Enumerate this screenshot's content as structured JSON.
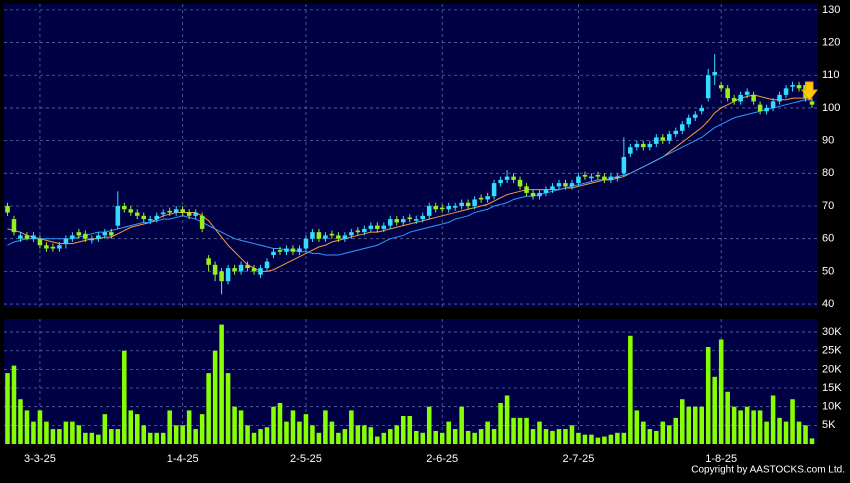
{
  "chart_data": {
    "type": "candlestick",
    "categories": [
      null,
      null,
      null,
      null,
      null,
      "3-3-25",
      null,
      null,
      null,
      null,
      null,
      null,
      null,
      null,
      null,
      null,
      null,
      null,
      null,
      null,
      null,
      null,
      null,
      null,
      null,
      null,
      null,
      "1-4-25",
      null,
      null,
      null,
      null,
      null,
      null,
      null,
      null,
      null,
      null,
      null,
      null,
      null,
      null,
      null,
      null,
      null,
      null,
      "2-5-25",
      null,
      null,
      null,
      null,
      null,
      null,
      null,
      null,
      null,
      null,
      null,
      null,
      null,
      null,
      null,
      null,
      null,
      null,
      null,
      null,
      "2-6-25",
      null,
      null,
      null,
      null,
      null,
      null,
      null,
      null,
      null,
      null,
      null,
      null,
      null,
      null,
      null,
      null,
      null,
      null,
      null,
      null,
      "2-7-25",
      null,
      null,
      null,
      null,
      null,
      null,
      null,
      null,
      null,
      null,
      null,
      null,
      null,
      null,
      null,
      null,
      null,
      null,
      null,
      null,
      null,
      "1-8-25",
      null,
      null,
      null,
      null,
      null,
      null,
      null,
      null,
      null,
      null,
      null,
      null,
      null,
      null
    ],
    "open": [
      70,
      66,
      60,
      61,
      60,
      60,
      58,
      57.5,
      57,
      58.5,
      60,
      62,
      61.5,
      59.5,
      60,
      61,
      62,
      64,
      70,
      69,
      68,
      67,
      65.5,
      66,
      67.5,
      68.5,
      68,
      69,
      68,
      67,
      67,
      54,
      52,
      50,
      47,
      51,
      50,
      52,
      51,
      49,
      51,
      55,
      56.5,
      56,
      57,
      56,
      57,
      60,
      62,
      60,
      61.5,
      61,
      60,
      61,
      62.5,
      62,
      63,
      64,
      63,
      64,
      66,
      65,
      66.5,
      65.5,
      66,
      67,
      70,
      69.5,
      69,
      69.5,
      70,
      71,
      70,
      72.5,
      72,
      73,
      77,
      78,
      79,
      78,
      76,
      74,
      73,
      74,
      75,
      76,
      77,
      76,
      77,
      79.5,
      78.5,
      79.5,
      79,
      78,
      78.5,
      80,
      86,
      88,
      89,
      88,
      89,
      91,
      90,
      92,
      93,
      95,
      97,
      99,
      103,
      110,
      107,
      106,
      103,
      102,
      104,
      104,
      101,
      99,
      100,
      102,
      104,
      106.5,
      107,
      107,
      102
    ],
    "high": [
      71,
      67,
      62,
      62,
      62,
      61,
      59,
      58.5,
      59,
      61,
      62,
      63,
      62.5,
      61,
      62,
      63,
      63,
      74.5,
      71,
      70,
      69,
      68,
      67,
      68,
      69,
      69.5,
      70,
      70,
      69,
      69,
      68,
      55,
      53,
      51,
      52,
      52,
      53,
      53,
      52,
      52,
      54,
      57,
      57.5,
      58,
      58,
      58,
      61,
      63,
      63,
      62,
      62.5,
      62,
      62,
      63,
      63.5,
      64,
      65,
      65,
      65,
      67,
      67,
      67,
      67.5,
      67,
      68,
      71,
      71,
      70.5,
      71,
      71,
      72,
      72,
      73,
      73.5,
      74,
      78,
      79,
      81,
      80,
      79,
      77,
      75,
      75,
      76,
      77,
      78,
      78,
      78,
      80,
      80.5,
      80,
      80.5,
      80,
      80,
      80,
      91,
      89,
      90,
      90,
      90,
      92,
      92,
      93,
      94,
      96,
      98,
      99,
      101,
      112,
      116.5,
      108,
      107,
      104,
      105,
      106,
      105,
      102,
      101,
      103,
      105,
      107,
      108,
      108,
      108,
      103
    ],
    "low": [
      67,
      61,
      59,
      59.5,
      59,
      57,
      56,
      56,
      56,
      57,
      59,
      60,
      59,
      58.5,
      59,
      60,
      60,
      63,
      68,
      67,
      66,
      65,
      64.5,
      65,
      66.5,
      67,
      67,
      67,
      66,
      66,
      62,
      50,
      47,
      43,
      46,
      49,
      49,
      50,
      49,
      48,
      50,
      54,
      55,
      55,
      55,
      55,
      56,
      59,
      59,
      59,
      60,
      59,
      59,
      60,
      61,
      61,
      62,
      62,
      62,
      63,
      64,
      64,
      65,
      64.5,
      65,
      66,
      68,
      68,
      68,
      68.5,
      69,
      69,
      69,
      71,
      71,
      72,
      76,
      77,
      77,
      75,
      73,
      72,
      72,
      73,
      74,
      75,
      75,
      75,
      76,
      78,
      77.5,
      78,
      77,
      77,
      77.5,
      79,
      85,
      87,
      87,
      87,
      88,
      89,
      89,
      91,
      92,
      94,
      96,
      98,
      102,
      107,
      105,
      102,
      101,
      101,
      103,
      101,
      98,
      98,
      99,
      101,
      103,
      105,
      105,
      102,
      100
    ],
    "close": [
      68,
      62,
      61,
      60,
      61,
      58,
      57,
      57,
      58,
      60,
      61,
      61,
      60,
      60,
      61,
      62,
      61,
      70,
      69,
      68,
      67,
      66,
      66,
      67,
      68,
      68,
      69,
      68,
      67,
      68,
      63,
      52,
      49,
      47,
      51,
      50,
      52,
      51,
      50,
      51,
      53,
      56,
      56,
      57,
      56,
      57,
      60,
      62,
      60,
      61,
      61,
      60,
      61,
      62,
      62,
      63,
      64,
      63,
      64,
      66,
      65,
      66,
      66,
      66,
      67,
      70,
      69,
      69,
      70,
      70,
      71,
      70,
      72,
      72,
      73,
      77,
      78,
      79,
      78,
      76,
      74,
      73,
      74,
      75,
      76,
      77,
      76,
      77,
      79,
      79,
      79,
      79,
      78,
      79,
      79,
      85,
      88,
      89,
      88,
      89,
      91,
      90,
      92,
      93,
      95,
      97,
      98,
      100,
      110,
      111,
      106,
      103,
      102,
      104,
      105,
      102,
      99,
      100,
      102,
      104,
      106,
      107,
      106,
      103,
      101
    ],
    "up_color": "#33ddff",
    "down_color": "#99ee22",
    "series": [
      {
        "color": "#ff9933",
        "values": [
          63,
          62.5,
          62,
          61,
          60.5,
          60,
          59.5,
          59,
          58.5,
          58.5,
          58.5,
          59,
          59.5,
          60,
          60,
          60.5,
          60.5,
          61.5,
          62.5,
          63.5,
          64,
          64.5,
          65,
          66,
          67,
          67.5,
          68,
          68,
          68,
          68,
          67,
          65.5,
          63,
          60.5,
          58,
          56,
          54,
          52,
          51,
          50,
          50,
          50.5,
          51.5,
          52.5,
          53.5,
          54.5,
          55.5,
          56.5,
          57.5,
          58,
          59,
          59.5,
          60,
          60.5,
          61,
          61.5,
          62,
          62,
          62.5,
          63,
          63.5,
          64,
          64.5,
          65,
          65.5,
          66,
          66.5,
          67,
          67.5,
          68,
          68.5,
          69,
          69.5,
          70,
          70.5,
          71.5,
          72.5,
          73.5,
          74,
          74.5,
          75,
          75,
          75,
          75,
          75,
          75,
          75.5,
          75.5,
          76,
          76.5,
          77,
          77.5,
          78,
          78,
          78.5,
          79,
          80,
          81,
          82,
          83,
          84,
          85,
          86.5,
          88,
          89.5,
          91,
          92.5,
          94,
          96,
          98.5,
          100,
          101,
          102,
          103,
          103.5,
          104,
          103.5,
          103,
          102.5,
          102.5,
          102.5,
          103,
          103,
          103,
          103
        ]
      },
      {
        "color": "#3399ff",
        "values": [
          58,
          59,
          59.5,
          60,
          60,
          60,
          60,
          60,
          60,
          60,
          60,
          60.5,
          61,
          61.5,
          62,
          62,
          62.5,
          63,
          63.5,
          64,
          64.5,
          65,
          65,
          65.5,
          66,
          66,
          66.5,
          67,
          66.5,
          66,
          65,
          64,
          63,
          62,
          61,
          60,
          59.5,
          59,
          58.5,
          58,
          57.5,
          57,
          57,
          56.5,
          56.5,
          56,
          56,
          55.5,
          55.5,
          55,
          55,
          55,
          55.5,
          56,
          56.5,
          57,
          57.5,
          58,
          59,
          60,
          60.5,
          61,
          62,
          62.5,
          63,
          63.5,
          64,
          64.5,
          65,
          66,
          66.5,
          67,
          68,
          68.5,
          69,
          70,
          70.5,
          71,
          72,
          72.5,
          73,
          73,
          73.5,
          74,
          74.5,
          75,
          75.5,
          76,
          76.5,
          77,
          77.5,
          78,
          78,
          78.5,
          79,
          79.5,
          80,
          81,
          82,
          83,
          84,
          85,
          86,
          87,
          88,
          89,
          90,
          91,
          92.5,
          94,
          95,
          96,
          97,
          97.5,
          98,
          98.5,
          99,
          99.5,
          100,
          100.5,
          101,
          101.5,
          102,
          102.5,
          102.5
        ]
      }
    ],
    "ylim": [
      38.8,
      131.8
    ],
    "yticks": [
      40,
      50,
      60,
      70,
      80,
      90,
      100,
      110,
      120,
      130
    ],
    "grid": true,
    "volume": {
      "color": "#88ff00",
      "values": [
        19000,
        21000,
        12000,
        9000,
        6000,
        9000,
        6000,
        4000,
        4000,
        6000,
        6000,
        5000,
        3000,
        3000,
        2500,
        8000,
        4000,
        4000,
        25000,
        9000,
        8000,
        5000,
        3000,
        3000,
        3000,
        9000,
        5000,
        5000,
        9000,
        4000,
        8000,
        19000,
        25000,
        32000,
        19000,
        10000,
        9000,
        5000,
        3000,
        4000,
        4500,
        10000,
        11000,
        6000,
        9000,
        6000,
        8000,
        5000,
        3000,
        9000,
        6000,
        3000,
        4000,
        9000,
        5000,
        5000,
        4500,
        2000,
        3000,
        4000,
        5000,
        7500,
        7500,
        3500,
        3000,
        10000,
        3500,
        3000,
        6000,
        4000,
        10000,
        3500,
        3000,
        4000,
        6000,
        4000,
        11000,
        13000,
        7000,
        7000,
        7000,
        4000,
        6000,
        4000,
        3500,
        4000,
        4000,
        5000,
        3000,
        2500,
        2500,
        1700,
        2000,
        2500,
        3000,
        3000,
        29000,
        9000,
        6000,
        4000,
        3500,
        6000,
        5000,
        7000,
        12000,
        10000,
        10000,
        10000,
        26000,
        18000,
        28000,
        14000,
        10000,
        9000,
        10000,
        9000,
        9000,
        6000,
        13000,
        7000,
        6000,
        12000,
        6000,
        5000,
        1500
      ],
      "ylim": [
        0,
        33500
      ],
      "yticks": [
        {
          "value": 5000,
          "label": "5K"
        },
        {
          "value": 10000,
          "label": "10K"
        },
        {
          "value": 15000,
          "label": "15K"
        },
        {
          "value": 20000,
          "label": "20K"
        },
        {
          "value": 25000,
          "label": "25K"
        },
        {
          "value": 30000,
          "label": "30K"
        }
      ]
    },
    "copyright": "Copyright by AASTOCKS.com Ltd."
  }
}
